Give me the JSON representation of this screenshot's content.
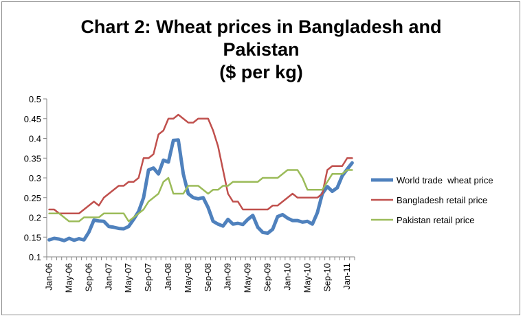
{
  "chart_data": {
    "type": "line",
    "title": [
      "Chart 2: Wheat prices in Bangladesh and",
      "Pakistan",
      "($ per kg)"
    ],
    "xlabel": "",
    "ylabel": "",
    "ylim": [
      0.1,
      0.5
    ],
    "yticks": [
      "0.1",
      "0.15",
      "0.2",
      "0.25",
      "0.3",
      "0.35",
      "0.4",
      "0.45",
      "0.5"
    ],
    "x_start": "Jan-06",
    "x_end": "Feb-11",
    "xtick_labels": [
      "Jan-06",
      "May-06",
      "Sep-06",
      "Jan-07",
      "May-07",
      "Sep-07",
      "Jan-08",
      "May-08",
      "Sep-08",
      "Jan-09",
      "May-09",
      "Sep-09",
      "Jan-10",
      "May-10",
      "Sep-10",
      "Jan-11"
    ],
    "grid": false,
    "legend_position": "right",
    "series": [
      {
        "name": "World trade  wheat price",
        "color": "#4F81BD",
        "width": 5,
        "values": [
          0.143,
          0.147,
          0.145,
          0.141,
          0.147,
          0.142,
          0.146,
          0.143,
          0.163,
          0.193,
          0.191,
          0.19,
          0.177,
          0.175,
          0.172,
          0.171,
          0.177,
          0.195,
          0.215,
          0.25,
          0.32,
          0.325,
          0.31,
          0.345,
          0.34,
          0.395,
          0.396,
          0.31,
          0.26,
          0.25,
          0.247,
          0.25,
          0.225,
          0.19,
          0.183,
          0.178,
          0.195,
          0.183,
          0.185,
          0.182,
          0.195,
          0.205,
          0.175,
          0.162,
          0.16,
          0.17,
          0.202,
          0.207,
          0.198,
          0.192,
          0.192,
          0.188,
          0.19,
          0.183,
          0.212,
          0.26,
          0.278,
          0.266,
          0.275,
          0.305,
          0.322,
          0.338
        ]
      },
      {
        "name": "Bangladesh retail price",
        "color": "#C0504D",
        "width": 2.5,
        "values": [
          0.22,
          0.22,
          0.21,
          0.21,
          0.21,
          0.21,
          0.21,
          0.22,
          0.23,
          0.24,
          0.23,
          0.25,
          0.26,
          0.27,
          0.28,
          0.28,
          0.29,
          0.29,
          0.3,
          0.35,
          0.35,
          0.36,
          0.41,
          0.42,
          0.45,
          0.45,
          0.46,
          0.45,
          0.44,
          0.44,
          0.45,
          0.45,
          0.45,
          0.42,
          0.38,
          0.32,
          0.26,
          0.24,
          0.24,
          0.22,
          0.22,
          0.22,
          0.22,
          0.22,
          0.22,
          0.23,
          0.23,
          0.24,
          0.25,
          0.26,
          0.25,
          0.25,
          0.25,
          0.25,
          0.25,
          0.26,
          0.32,
          0.33,
          0.33,
          0.33,
          0.35,
          0.35
        ]
      },
      {
        "name": "Pakistan retail price",
        "color": "#9BBB59",
        "width": 2.5,
        "values": [
          0.21,
          0.21,
          0.21,
          0.2,
          0.19,
          0.19,
          0.19,
          0.2,
          0.2,
          0.2,
          0.2,
          0.21,
          0.21,
          0.21,
          0.21,
          0.21,
          0.19,
          0.2,
          0.21,
          0.22,
          0.24,
          0.25,
          0.26,
          0.29,
          0.3,
          0.26,
          0.26,
          0.26,
          0.28,
          0.28,
          0.28,
          0.27,
          0.26,
          0.27,
          0.27,
          0.28,
          0.28,
          0.29,
          0.29,
          0.29,
          0.29,
          0.29,
          0.29,
          0.3,
          0.3,
          0.3,
          0.3,
          0.31,
          0.32,
          0.32,
          0.32,
          0.3,
          0.27,
          0.27,
          0.27,
          0.27,
          0.29,
          0.31,
          0.31,
          0.31,
          0.32,
          0.32
        ]
      }
    ]
  }
}
